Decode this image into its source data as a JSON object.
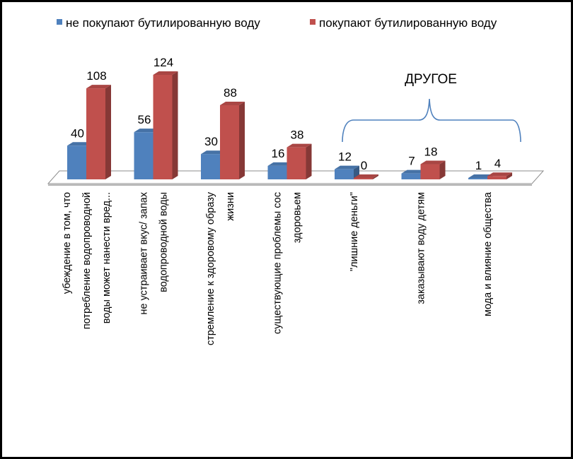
{
  "chart_data": {
    "type": "bar",
    "categories": [
      [
        "убеждение  в том, что",
        "потребление  водопроводной",
        "воды может нанести вред..."
      ],
      [
        "не устраивает вкус/ запах",
        "водопроводной воды"
      ],
      [
        "стремление к здоровому образу",
        "жизни"
      ],
      [
        "существующие проблемы сос",
        "здоровьем"
      ],
      [
        "\"лишние деньги\""
      ],
      [
        "заказывают воду детям"
      ],
      [
        "мода и влияние общества"
      ]
    ],
    "series": [
      {
        "name": "не покупают бутилированную воду",
        "color": "#4F81BD",
        "values": [
          40,
          56,
          30,
          16,
          12,
          7,
          1
        ]
      },
      {
        "name": "покупают бутилированную воду",
        "color": "#C0504D",
        "values": [
          108,
          124,
          88,
          38,
          0,
          18,
          4
        ]
      }
    ],
    "ylim": [
      0,
      124
    ],
    "grid": false,
    "legend_position": "top",
    "annotation": {
      "text": "ДРУГОЕ",
      "bracket_color": "#4F81BD"
    }
  }
}
